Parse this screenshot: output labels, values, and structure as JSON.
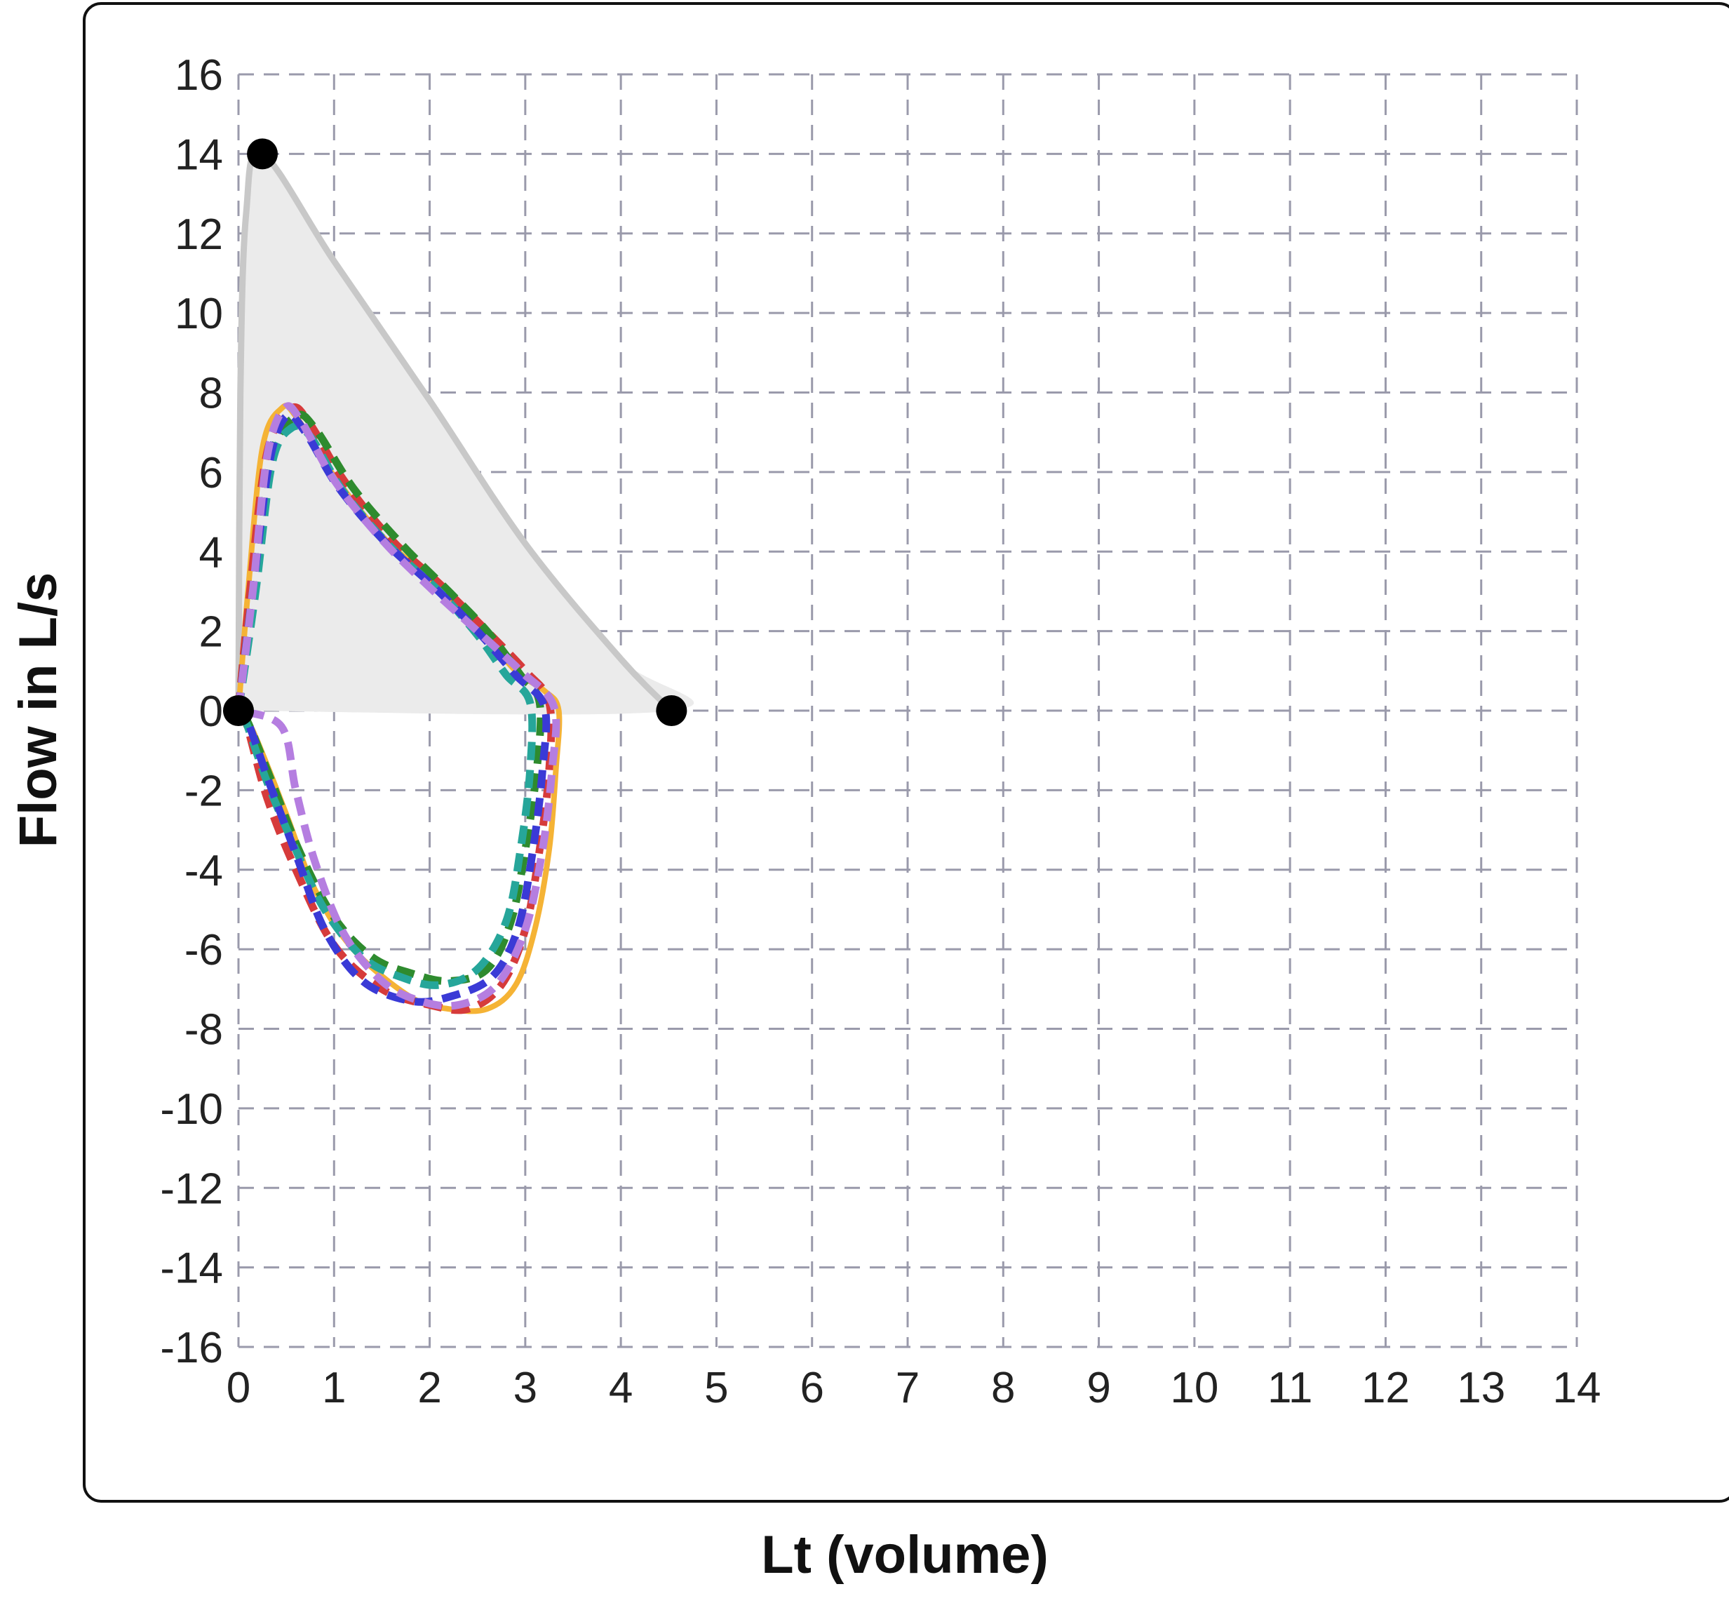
{
  "chart_data": {
    "type": "line",
    "title": "",
    "xlabel": "Lt (volume)",
    "ylabel": "Flow in L/s",
    "xlim": [
      0,
      14
    ],
    "ylim": [
      -16,
      16
    ],
    "x_ticks": [
      0,
      1,
      2,
      3,
      4,
      5,
      6,
      7,
      8,
      9,
      10,
      11,
      12,
      13,
      14
    ],
    "y_ticks": [
      16,
      14,
      12,
      10,
      8,
      6,
      4,
      2,
      0,
      -2,
      -4,
      -6,
      -8,
      -10,
      -12,
      -14,
      -16
    ],
    "grid": true,
    "legend": "none",
    "predicted_envelope": {
      "fill": "#ebebeb",
      "stroke": "#c8c8c8",
      "points": [
        [
          0,
          0
        ],
        [
          0.02,
          8
        ],
        [
          0.08,
          12.5
        ],
        [
          0.25,
          14
        ],
        [
          1,
          11.3
        ],
        [
          2,
          7.8
        ],
        [
          3,
          4.2
        ],
        [
          4,
          1.3
        ],
        [
          4.53,
          0
        ],
        [
          0,
          0
        ]
      ],
      "markers": [
        [
          0,
          0
        ],
        [
          0.25,
          14
        ],
        [
          4.53,
          0
        ]
      ],
      "marker_color": "#000000"
    },
    "series": [
      {
        "color": "#f5b335",
        "dash": "solid",
        "points": [
          [
            0,
            0
          ],
          [
            0.1,
            3
          ],
          [
            0.25,
            6.6
          ],
          [
            0.45,
            7.6
          ],
          [
            0.6,
            7.4
          ],
          [
            1,
            5.9
          ],
          [
            1.5,
            4.4
          ],
          [
            2,
            3.3
          ],
          [
            2.5,
            2.1
          ],
          [
            2.9,
            1.0
          ],
          [
            3.2,
            0.5
          ],
          [
            3.35,
            0
          ],
          [
            3.32,
            -1.5
          ],
          [
            3.25,
            -3.5
          ],
          [
            3.1,
            -5.5
          ],
          [
            2.9,
            -6.9
          ],
          [
            2.6,
            -7.5
          ],
          [
            2.2,
            -7.5
          ],
          [
            1.8,
            -7.2
          ],
          [
            1.2,
            -6.0
          ],
          [
            0.8,
            -4.5
          ],
          [
            0.5,
            -2.6
          ],
          [
            0.15,
            -0.5
          ],
          [
            0,
            0
          ]
        ]
      },
      {
        "color": "#d63b3b",
        "dash": "dashed",
        "points": [
          [
            0,
            0
          ],
          [
            0.12,
            3
          ],
          [
            0.3,
            6.5
          ],
          [
            0.55,
            7.6
          ],
          [
            0.75,
            7.2
          ],
          [
            1.1,
            5.8
          ],
          [
            1.6,
            4.3
          ],
          [
            2.1,
            3.2
          ],
          [
            2.6,
            2.0
          ],
          [
            3.0,
            1.0
          ],
          [
            3.25,
            0.2
          ],
          [
            3.25,
            -1.5
          ],
          [
            3.15,
            -3.5
          ],
          [
            3.0,
            -5.5
          ],
          [
            2.75,
            -6.9
          ],
          [
            2.4,
            -7.5
          ],
          [
            2.0,
            -7.4
          ],
          [
            1.5,
            -7.0
          ],
          [
            1.0,
            -5.9
          ],
          [
            0.6,
            -4.0
          ],
          [
            0.3,
            -2.2
          ],
          [
            0.08,
            -0.3
          ],
          [
            0,
            0
          ]
        ]
      },
      {
        "color": "#2e8b2e",
        "dash": "dashed",
        "points": [
          [
            0,
            0
          ],
          [
            0.15,
            3
          ],
          [
            0.35,
            6.4
          ],
          [
            0.6,
            7.4
          ],
          [
            0.8,
            7.1
          ],
          [
            1.2,
            5.6
          ],
          [
            1.7,
            4.2
          ],
          [
            2.2,
            3.0
          ],
          [
            2.6,
            2.0
          ],
          [
            2.95,
            0.9
          ],
          [
            3.15,
            0.2
          ],
          [
            3.12,
            -1.5
          ],
          [
            3.0,
            -3.5
          ],
          [
            2.85,
            -5.3
          ],
          [
            2.6,
            -6.5
          ],
          [
            2.2,
            -6.8
          ],
          [
            1.8,
            -6.6
          ],
          [
            1.4,
            -6.2
          ],
          [
            1.0,
            -5.2
          ],
          [
            0.65,
            -3.6
          ],
          [
            0.35,
            -1.8
          ],
          [
            0.1,
            -0.3
          ],
          [
            0,
            0
          ]
        ]
      },
      {
        "color": "#26a69a",
        "dash": "dashed",
        "points": [
          [
            0,
            0
          ],
          [
            0.18,
            3
          ],
          [
            0.35,
            6.2
          ],
          [
            0.55,
            7.1
          ],
          [
            0.75,
            6.9
          ],
          [
            1.1,
            5.5
          ],
          [
            1.6,
            4.1
          ],
          [
            2.1,
            3.0
          ],
          [
            2.5,
            1.9
          ],
          [
            2.8,
            0.9
          ],
          [
            3.05,
            0.2
          ],
          [
            3.05,
            -1.5
          ],
          [
            2.95,
            -3.5
          ],
          [
            2.8,
            -5.3
          ],
          [
            2.5,
            -6.5
          ],
          [
            2.1,
            -6.9
          ],
          [
            1.7,
            -6.7
          ],
          [
            1.3,
            -6.2
          ],
          [
            0.9,
            -5.0
          ],
          [
            0.6,
            -3.5
          ],
          [
            0.3,
            -1.8
          ],
          [
            0.08,
            -0.3
          ],
          [
            0,
            0
          ]
        ]
      },
      {
        "color": "#3a3ad6",
        "dash": "dashed",
        "points": [
          [
            0,
            0
          ],
          [
            0.15,
            3
          ],
          [
            0.32,
            6.2
          ],
          [
            0.5,
            7.4
          ],
          [
            0.7,
            7.0
          ],
          [
            1.05,
            5.6
          ],
          [
            1.55,
            4.2
          ],
          [
            2.05,
            3.1
          ],
          [
            2.5,
            2.0
          ],
          [
            2.9,
            0.9
          ],
          [
            3.2,
            0.1
          ],
          [
            3.18,
            -1.5
          ],
          [
            3.08,
            -3.5
          ],
          [
            2.92,
            -5.5
          ],
          [
            2.65,
            -6.7
          ],
          [
            2.2,
            -7.2
          ],
          [
            1.8,
            -7.3
          ],
          [
            1.3,
            -6.8
          ],
          [
            0.9,
            -5.5
          ],
          [
            0.6,
            -3.6
          ],
          [
            0.32,
            -1.8
          ],
          [
            0.1,
            -0.3
          ],
          [
            0,
            0
          ]
        ]
      },
      {
        "color": "#b57ee0",
        "dash": "dashed",
        "points": [
          [
            0,
            0
          ],
          [
            0.15,
            3
          ],
          [
            0.3,
            6.4
          ],
          [
            0.48,
            7.6
          ],
          [
            0.65,
            7.3
          ],
          [
            1.0,
            5.8
          ],
          [
            1.5,
            4.3
          ],
          [
            2.0,
            3.1
          ],
          [
            2.5,
            2.0
          ],
          [
            2.95,
            1.0
          ],
          [
            3.3,
            0.1
          ],
          [
            3.28,
            -1.5
          ],
          [
            3.18,
            -3.5
          ],
          [
            3.0,
            -5.5
          ],
          [
            2.7,
            -6.9
          ],
          [
            2.3,
            -7.4
          ],
          [
            1.9,
            -7.3
          ],
          [
            1.5,
            -6.8
          ],
          [
            1.1,
            -5.6
          ],
          [
            0.8,
            -3.8
          ],
          [
            0.6,
            -2.0
          ],
          [
            0.45,
            -0.4
          ],
          [
            0,
            0
          ]
        ]
      }
    ]
  }
}
